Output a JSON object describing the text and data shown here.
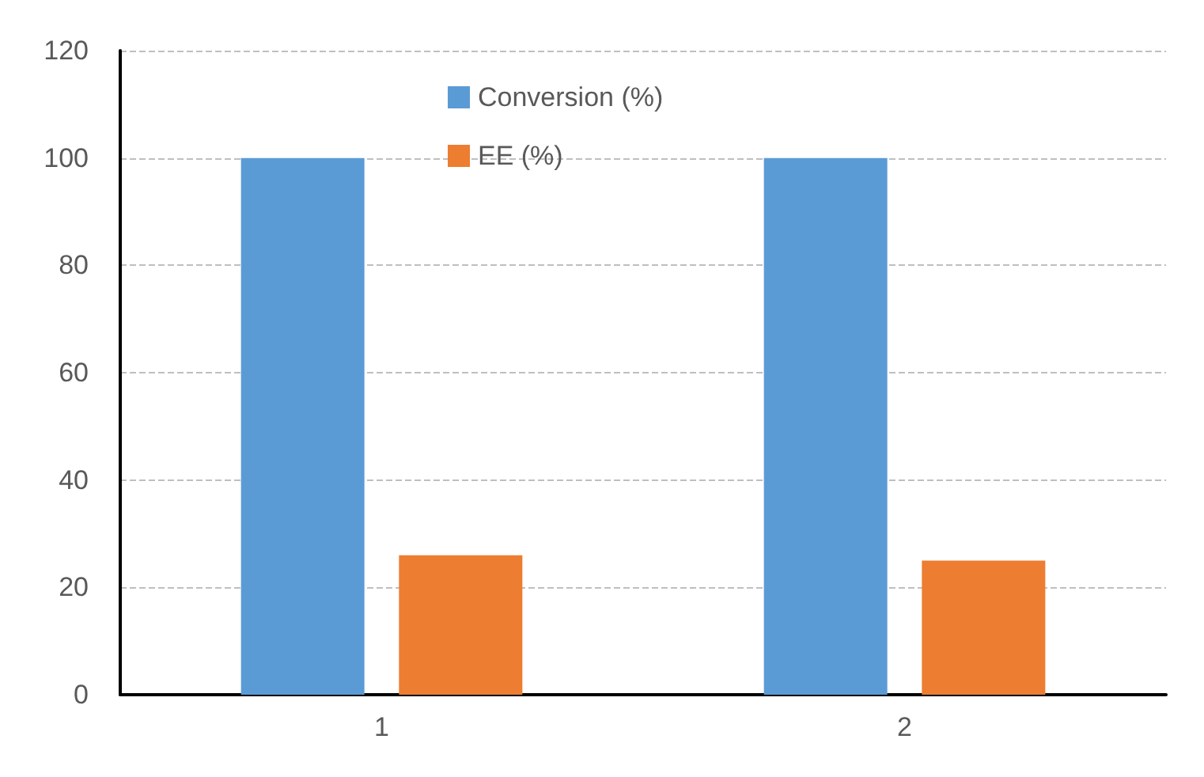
{
  "chart_data": {
    "type": "bar",
    "categories": [
      "1",
      "2"
    ],
    "series": [
      {
        "name": "Conversion (%)",
        "color": "#5b9bd5",
        "values": [
          100,
          100
        ]
      },
      {
        "name": "EE (%)",
        "color": "#ed7d31",
        "values": [
          26,
          25
        ]
      }
    ],
    "ylim": [
      0,
      120
    ],
    "yticks": [
      0,
      20,
      40,
      60,
      80,
      100,
      120
    ],
    "grid": "y",
    "legend": "top"
  }
}
